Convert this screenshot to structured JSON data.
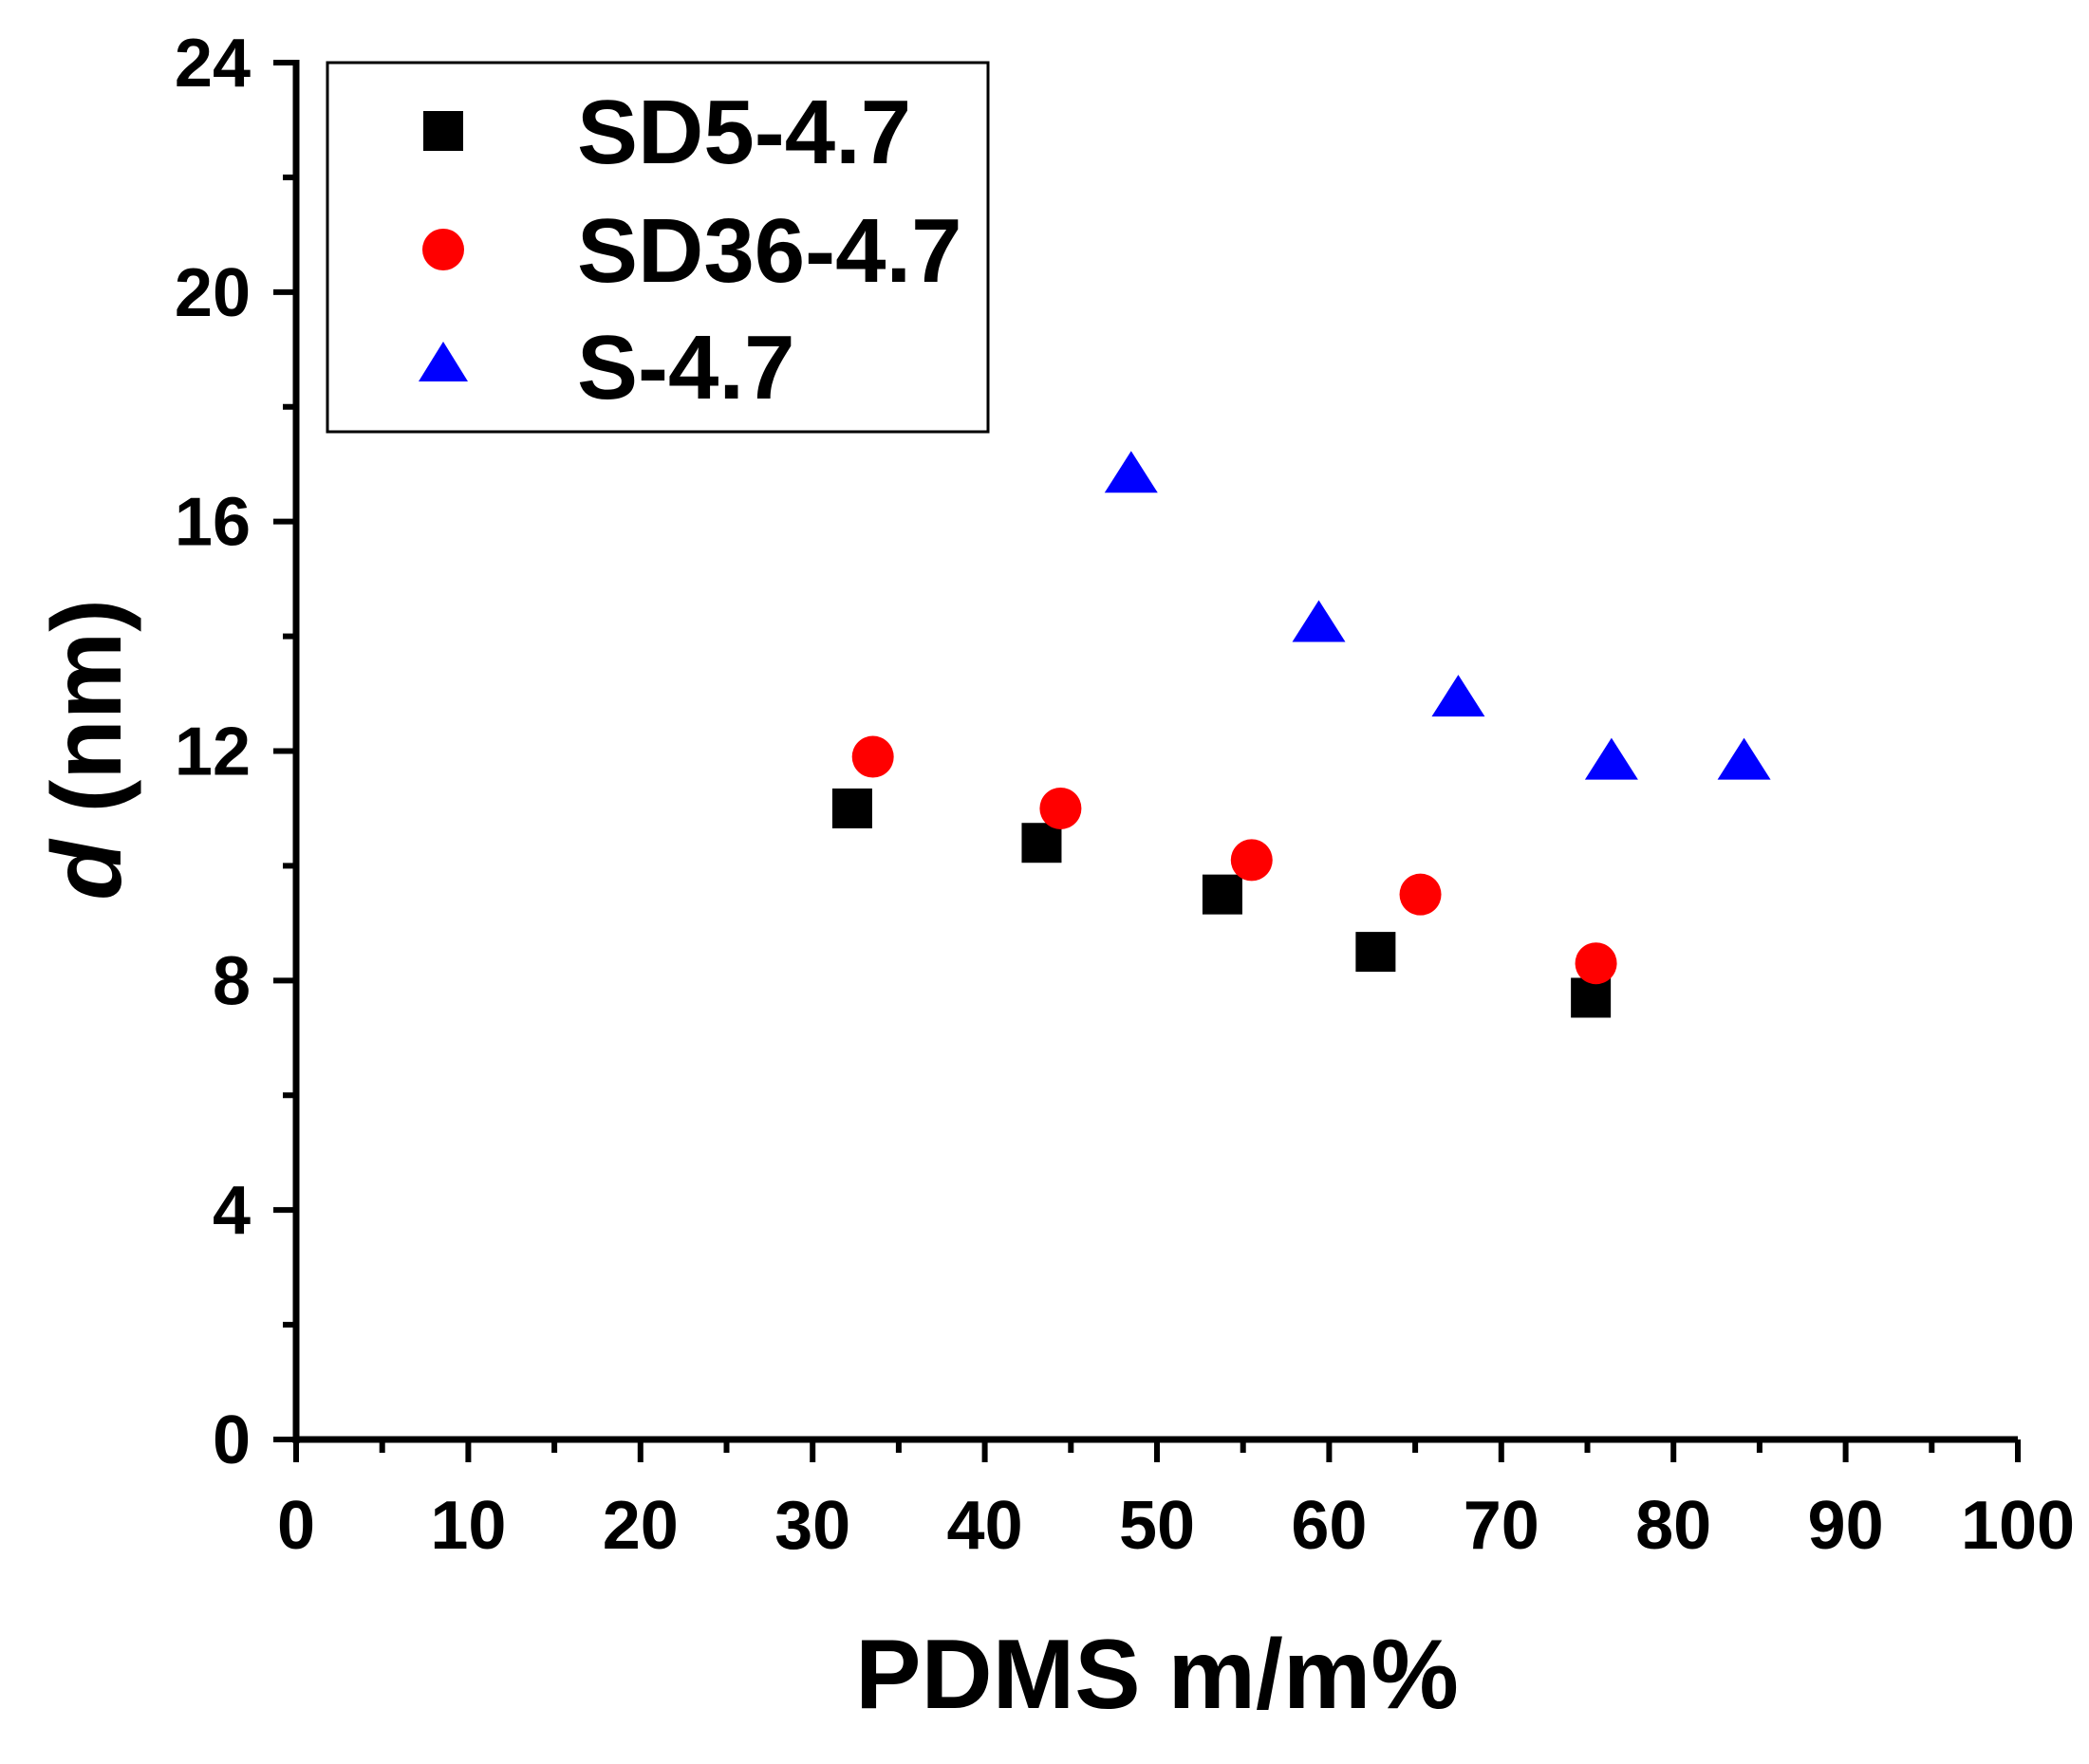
{
  "chart_data": {
    "type": "scatter",
    "title": "",
    "xlabel": "PDMS m/m%",
    "ylabel_italic": "d",
    "ylabel_rest": " (nm)",
    "xlim": [
      0,
      100
    ],
    "ylim": [
      0,
      24
    ],
    "xticks": [
      "0",
      "10",
      "20",
      "30",
      "40",
      "50",
      "60",
      "70",
      "80",
      "90",
      "100"
    ],
    "yticks": [
      "0",
      "4",
      "8",
      "12",
      "16",
      "20",
      "24"
    ],
    "grid": false,
    "legend_position": "top-left",
    "series": [
      {
        "name": "SD5-4.7",
        "marker": "square",
        "color": "#000000",
        "points": [
          {
            "x": 32.3,
            "y": 11.0
          },
          {
            "x": 43.3,
            "y": 10.4
          },
          {
            "x": 53.8,
            "y": 9.5
          },
          {
            "x": 62.7,
            "y": 8.5
          },
          {
            "x": 75.2,
            "y": 7.7
          }
        ]
      },
      {
        "name": "SD36-4.7",
        "marker": "circle",
        "color": "#ff0000",
        "points": [
          {
            "x": 33.5,
            "y": 11.9
          },
          {
            "x": 44.4,
            "y": 11.0
          },
          {
            "x": 55.5,
            "y": 10.1
          },
          {
            "x": 65.3,
            "y": 9.5
          },
          {
            "x": 75.5,
            "y": 8.3
          }
        ]
      },
      {
        "name": "S-4.7",
        "marker": "triangle",
        "color": "#0000ff",
        "points": [
          {
            "x": 48.5,
            "y": 16.8
          },
          {
            "x": 59.4,
            "y": 14.2
          },
          {
            "x": 67.5,
            "y": 12.9
          },
          {
            "x": 76.4,
            "y": 11.8
          },
          {
            "x": 84.1,
            "y": 11.8
          }
        ]
      }
    ]
  }
}
